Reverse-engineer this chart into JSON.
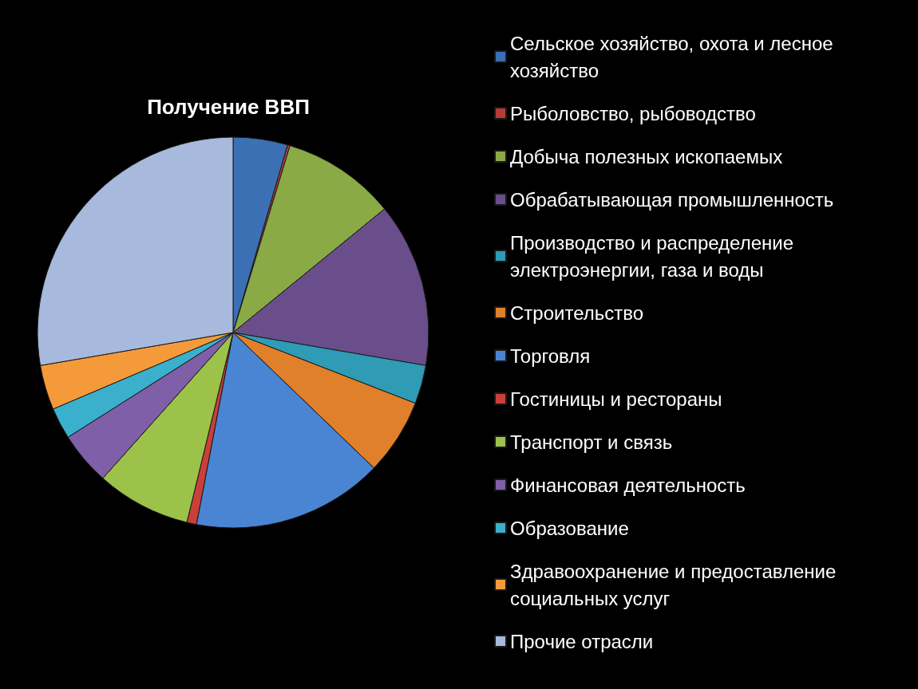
{
  "chart_data": {
    "type": "pie",
    "title": "Получение ВВП",
    "categories": [
      "Сельское хозяйство, охота и лесное хозяйство",
      "Рыболовство, рыбоводство",
      "Добыча полезных ископаемых",
      "Обрабатывающая промышленность",
      "Производство и распределение электроэнергии, газа и воды",
      "Строительство",
      "Торговля",
      "Гостиницы и рестораны",
      "Транспорт и связь",
      "Финансовая деятельность",
      "Образование",
      "Здравоохранение и предоставление социальных услуг",
      "Прочие отрасли"
    ],
    "values": [
      4.5,
      0.2,
      9.4,
      13.6,
      3.2,
      6.3,
      15.8,
      0.8,
      7.8,
      4.4,
      2.6,
      3.7,
      27.7
    ],
    "colors": [
      "#3b70b5",
      "#b83a35",
      "#8aaa45",
      "#6a4e8c",
      "#2f9bb5",
      "#e0802b",
      "#4a85d4",
      "#c9403a",
      "#9dc24a",
      "#7f5fa8",
      "#3ab0cc",
      "#f59a3a",
      "#a7b9dc"
    ],
    "legend": "right"
  }
}
